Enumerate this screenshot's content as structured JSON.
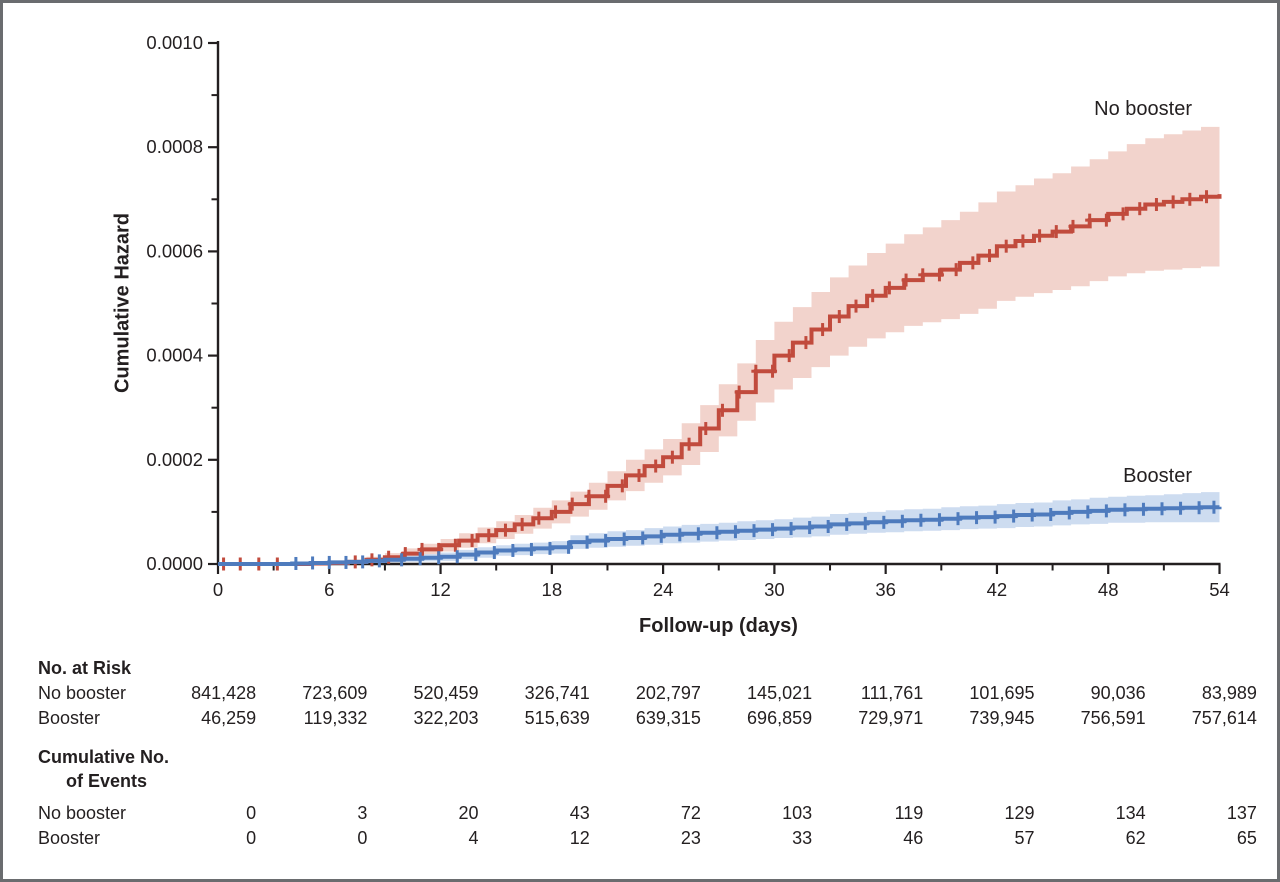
{
  "colors": {
    "no_booster_line": "#c14b3d",
    "no_booster_band": "#f2d3cc",
    "booster_line": "#4e7bbd",
    "booster_band": "#cddcf0",
    "axis_text": "#231f20",
    "figure_border": "#6a6c6f"
  },
  "chart_data": {
    "type": "line",
    "subtype": "step-cumulative-hazard-with-confidence-bands",
    "title": "",
    "xlabel": "Follow-up (days)",
    "ylabel": "Cumulative Hazard",
    "xlim": [
      0,
      54
    ],
    "ylim": [
      0,
      0.001
    ],
    "grid": false,
    "value_scale": 0.0001,
    "x_ticks": [
      {
        "value": 0,
        "label": "0"
      },
      {
        "value": 6,
        "label": "6"
      },
      {
        "value": 12,
        "label": "12"
      },
      {
        "value": 18,
        "label": "18"
      },
      {
        "value": 24,
        "label": "24"
      },
      {
        "value": 30,
        "label": "30"
      },
      {
        "value": 36,
        "label": "36"
      },
      {
        "value": 42,
        "label": "42"
      },
      {
        "value": 48,
        "label": "48"
      },
      {
        "value": 54,
        "label": "54"
      }
    ],
    "x_minor_ticks": [
      3,
      9,
      15,
      21,
      27,
      33,
      39,
      45,
      51
    ],
    "y_ticks": [
      {
        "value": 0,
        "label": "0.0000"
      },
      {
        "value": 2,
        "label": "0.0002"
      },
      {
        "value": 4,
        "label": "0.0004"
      },
      {
        "value": 6,
        "label": "0.0006"
      },
      {
        "value": 8,
        "label": "0.0008"
      },
      {
        "value": 10,
        "label": "0.0010"
      }
    ],
    "y_minor_ticks": [
      1,
      3,
      5,
      7,
      9
    ],
    "series": [
      {
        "name": "No booster",
        "color": "#c14b3d",
        "band_color": "#f2d3cc",
        "steps_day_value_halfwidth": [
          [
            0,
            0,
            0
          ],
          [
            1,
            0,
            0
          ],
          [
            2,
            0,
            0
          ],
          [
            3,
            0,
            0
          ],
          [
            4,
            0,
            0.01
          ],
          [
            5,
            0.01,
            0.02
          ],
          [
            6,
            0.02,
            0.03
          ],
          [
            7,
            0.04,
            0.04
          ],
          [
            8,
            0.08,
            0.06
          ],
          [
            9,
            0.13,
            0.08
          ],
          [
            10,
            0.2,
            0.1
          ],
          [
            11,
            0.28,
            0.11
          ],
          [
            12,
            0.36,
            0.12
          ],
          [
            13,
            0.45,
            0.14
          ],
          [
            14,
            0.55,
            0.15
          ],
          [
            15,
            0.65,
            0.17
          ],
          [
            16,
            0.76,
            0.18
          ],
          [
            17,
            0.88,
            0.2
          ],
          [
            18,
            1.0,
            0.22
          ],
          [
            19,
            1.15,
            0.24
          ],
          [
            20,
            1.3,
            0.26
          ],
          [
            21,
            1.5,
            0.28
          ],
          [
            22,
            1.7,
            0.3
          ],
          [
            23,
            1.88,
            0.32
          ],
          [
            24,
            2.05,
            0.35
          ],
          [
            25,
            2.3,
            0.4
          ],
          [
            26,
            2.6,
            0.45
          ],
          [
            27,
            2.95,
            0.5
          ],
          [
            28,
            3.3,
            0.55
          ],
          [
            29,
            3.7,
            0.6
          ],
          [
            30,
            4.0,
            0.65
          ],
          [
            31,
            4.25,
            0.68
          ],
          [
            32,
            4.5,
            0.72
          ],
          [
            33,
            4.75,
            0.75
          ],
          [
            34,
            4.95,
            0.78
          ],
          [
            35,
            5.15,
            0.82
          ],
          [
            36,
            5.3,
            0.85
          ],
          [
            37,
            5.45,
            0.88
          ],
          [
            38,
            5.55,
            0.91
          ],
          [
            39,
            5.65,
            0.95
          ],
          [
            40,
            5.78,
            0.98
          ],
          [
            41,
            5.92,
            1.02
          ],
          [
            42,
            6.1,
            1.05
          ],
          [
            43,
            6.2,
            1.07
          ],
          [
            44,
            6.3,
            1.1
          ],
          [
            45,
            6.38,
            1.12
          ],
          [
            46,
            6.48,
            1.15
          ],
          [
            47,
            6.6,
            1.17
          ],
          [
            48,
            6.72,
            1.2
          ],
          [
            49,
            6.82,
            1.24
          ],
          [
            50,
            6.9,
            1.27
          ],
          [
            51,
            6.95,
            1.3
          ],
          [
            52,
            7.0,
            1.32
          ],
          [
            53,
            7.05,
            1.34
          ],
          [
            54,
            7.1,
            1.35
          ]
        ],
        "censor_days": [
          0.3,
          1.2,
          2.2,
          3.2,
          7.4,
          8.3,
          9.2,
          10.1,
          11.0,
          11.9,
          12.8,
          13.7,
          14.6,
          15.5,
          16.4,
          17.3,
          18.2,
          19.1,
          20.0,
          20.9,
          21.8,
          22.7,
          23.6,
          24.5,
          25.4,
          26.3,
          27.2,
          28.1,
          29.0,
          29.9,
          30.8,
          31.7,
          32.6,
          33.5,
          34.4,
          35.3,
          36.2,
          37.1,
          38.0,
          38.9,
          39.8,
          40.7,
          41.6,
          42.5,
          43.4,
          44.3,
          45.2,
          46.1,
          47.0,
          47.9,
          48.8,
          49.7,
          50.6,
          51.5,
          52.4,
          53.3
        ]
      },
      {
        "name": "Booster",
        "color": "#4e7bbd",
        "band_color": "#cddcf0",
        "steps_day_value_halfwidth": [
          [
            0,
            0,
            0
          ],
          [
            1,
            0,
            0
          ],
          [
            2,
            0,
            0
          ],
          [
            3,
            0,
            0.01
          ],
          [
            4,
            0.01,
            0.02
          ],
          [
            5,
            0.02,
            0.02
          ],
          [
            6,
            0.03,
            0.03
          ],
          [
            7,
            0.04,
            0.03
          ],
          [
            8,
            0.06,
            0.04
          ],
          [
            9,
            0.08,
            0.05
          ],
          [
            10,
            0.1,
            0.06
          ],
          [
            11,
            0.12,
            0.07
          ],
          [
            12,
            0.14,
            0.08
          ],
          [
            13,
            0.18,
            0.09
          ],
          [
            14,
            0.22,
            0.1
          ],
          [
            15,
            0.26,
            0.1
          ],
          [
            16,
            0.28,
            0.11
          ],
          [
            17,
            0.3,
            0.11
          ],
          [
            18,
            0.32,
            0.12
          ],
          [
            19,
            0.42,
            0.13
          ],
          [
            20,
            0.45,
            0.14
          ],
          [
            21,
            0.48,
            0.15
          ],
          [
            22,
            0.5,
            0.15
          ],
          [
            23,
            0.53,
            0.16
          ],
          [
            24,
            0.56,
            0.16
          ],
          [
            25,
            0.58,
            0.17
          ],
          [
            26,
            0.6,
            0.17
          ],
          [
            27,
            0.62,
            0.17
          ],
          [
            28,
            0.64,
            0.18
          ],
          [
            29,
            0.66,
            0.18
          ],
          [
            30,
            0.68,
            0.18
          ],
          [
            31,
            0.7,
            0.19
          ],
          [
            32,
            0.72,
            0.19
          ],
          [
            33,
            0.76,
            0.2
          ],
          [
            34,
            0.78,
            0.2
          ],
          [
            35,
            0.8,
            0.2
          ],
          [
            36,
            0.82,
            0.21
          ],
          [
            37,
            0.84,
            0.21
          ],
          [
            38,
            0.85,
            0.21
          ],
          [
            39,
            0.87,
            0.22
          ],
          [
            40,
            0.89,
            0.22
          ],
          [
            41,
            0.9,
            0.22
          ],
          [
            42,
            0.92,
            0.23
          ],
          [
            43,
            0.94,
            0.23
          ],
          [
            44,
            0.95,
            0.23
          ],
          [
            45,
            0.98,
            0.24
          ],
          [
            46,
            1.0,
            0.24
          ],
          [
            47,
            1.02,
            0.25
          ],
          [
            48,
            1.04,
            0.25
          ],
          [
            49,
            1.05,
            0.26
          ],
          [
            50,
            1.06,
            0.26
          ],
          [
            51,
            1.07,
            0.27
          ],
          [
            52,
            1.08,
            0.28
          ],
          [
            53,
            1.09,
            0.29
          ],
          [
            54,
            1.1,
            0.3
          ]
        ],
        "censor_days": [
          4.2,
          5.1,
          6.0,
          6.9,
          7.8,
          8.7,
          9.9,
          10.9,
          11.9,
          12.9,
          13.9,
          14.9,
          15.9,
          16.9,
          17.9,
          18.9,
          19.9,
          20.9,
          21.9,
          22.9,
          23.9,
          24.9,
          25.9,
          26.9,
          27.9,
          28.9,
          29.9,
          30.9,
          31.9,
          32.9,
          33.9,
          34.9,
          35.9,
          36.9,
          37.9,
          38.9,
          39.9,
          40.9,
          41.9,
          42.9,
          43.9,
          44.9,
          45.9,
          46.9,
          47.9,
          48.9,
          49.9,
          50.9,
          51.9,
          52.9,
          53.7
        ]
      }
    ]
  },
  "risk_table": {
    "sections": [
      {
        "id": "at-risk",
        "header_lines": [
          "No. at Risk"
        ],
        "rows": [
          {
            "label": "No booster",
            "values": [
              "841,428",
              "723,609",
              "520,459",
              "326,741",
              "202,797",
              "145,021",
              "111,761",
              "101,695",
              "90,036",
              "83,989"
            ]
          },
          {
            "label": "Booster",
            "values": [
              "46,259",
              "119,332",
              "322,203",
              "515,639",
              "639,315",
              "696,859",
              "729,971",
              "739,945",
              "756,591",
              "757,614"
            ]
          }
        ]
      },
      {
        "id": "events",
        "header_lines": [
          "Cumulative No.",
          "of Events"
        ],
        "rows": [
          {
            "label": "No booster",
            "values": [
              "0",
              "3",
              "20",
              "43",
              "72",
              "103",
              "119",
              "129",
              "134",
              "137"
            ]
          },
          {
            "label": "Booster",
            "values": [
              "0",
              "0",
              "4",
              "12",
              "23",
              "33",
              "46",
              "57",
              "62",
              "65"
            ]
          }
        ]
      }
    ]
  }
}
